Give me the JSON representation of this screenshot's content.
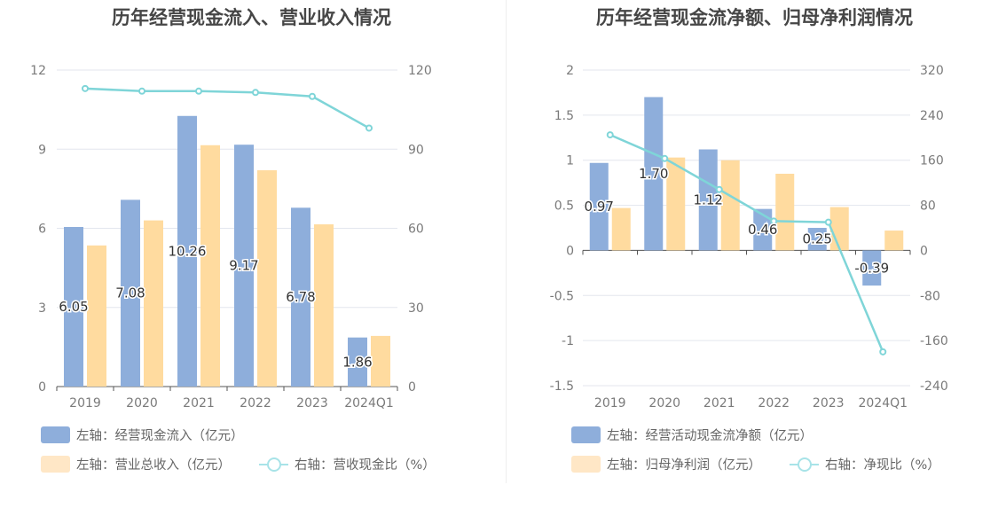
{
  "colors": {
    "bar_primary": "#8eaedb",
    "bar_secondary": "#ffdb9f",
    "line": "#7fd5d8",
    "legend_bar_secondary": "#ffe7c6",
    "legend_line": "#a8e3e8",
    "grid": "#e3e6ee",
    "axis_text": "#7a7a7a"
  },
  "chart_data": [
    {
      "type": "bar",
      "title": "历年经营现金流入、营业收入情况",
      "categories": [
        "2019",
        "2020",
        "2021",
        "2022",
        "2023",
        "2024Q1"
      ],
      "left_axis": {
        "ylim": [
          0,
          12
        ],
        "ticks": [
          "0",
          "3",
          "6",
          "9",
          "12"
        ]
      },
      "right_axis": {
        "ylim": [
          0,
          120
        ],
        "ticks": [
          "0",
          "30",
          "60",
          "90",
          "120"
        ]
      },
      "series": [
        {
          "name": "左轴：经营现金流入（亿元）",
          "axis": "left",
          "kind": "bar",
          "values": [
            6.05,
            7.08,
            10.26,
            9.17,
            6.78,
            1.86
          ],
          "labels": [
            "6.05",
            "7.08",
            "10.26",
            "9.17",
            "6.78",
            "1.86"
          ]
        },
        {
          "name": "左轴：营业总收入（亿元）",
          "axis": "left",
          "kind": "bar",
          "values": [
            5.35,
            6.3,
            9.15,
            8.2,
            6.15,
            1.92
          ]
        },
        {
          "name": "右轴：营收现金比（%）",
          "axis": "right",
          "kind": "line",
          "values": [
            113,
            112,
            112,
            111.5,
            110,
            98
          ]
        }
      ]
    },
    {
      "type": "bar",
      "title": "历年经营现金流净额、归母净利润情况",
      "categories": [
        "2019",
        "2020",
        "2021",
        "2022",
        "2023",
        "2024Q1"
      ],
      "left_axis": {
        "ylim": [
          -1.5,
          2
        ],
        "ticks": [
          "-1.5",
          "-1",
          "-0.5",
          "0",
          "0.5",
          "1",
          "1.5",
          "2"
        ]
      },
      "right_axis": {
        "ylim": [
          -240,
          320
        ],
        "ticks": [
          "-240",
          "-160",
          "-80",
          "0",
          "80",
          "160",
          "240",
          "320"
        ]
      },
      "series": [
        {
          "name": "左轴：经营活动现金流净额（亿元）",
          "axis": "left",
          "kind": "bar",
          "values": [
            0.97,
            1.7,
            1.12,
            0.46,
            0.25,
            -0.39
          ],
          "labels": [
            "0.97",
            "1.70",
            "1.12",
            "0.46",
            "0.25",
            "-0.39"
          ]
        },
        {
          "name": "左轴：归母净利润（亿元）",
          "axis": "left",
          "kind": "bar",
          "values": [
            0.47,
            1.03,
            1.0,
            0.85,
            0.48,
            0.22
          ]
        },
        {
          "name": "右轴：净现比（%）",
          "axis": "right",
          "kind": "line",
          "values": [
            205,
            163,
            108,
            52,
            50,
            -180
          ]
        }
      ]
    }
  ]
}
